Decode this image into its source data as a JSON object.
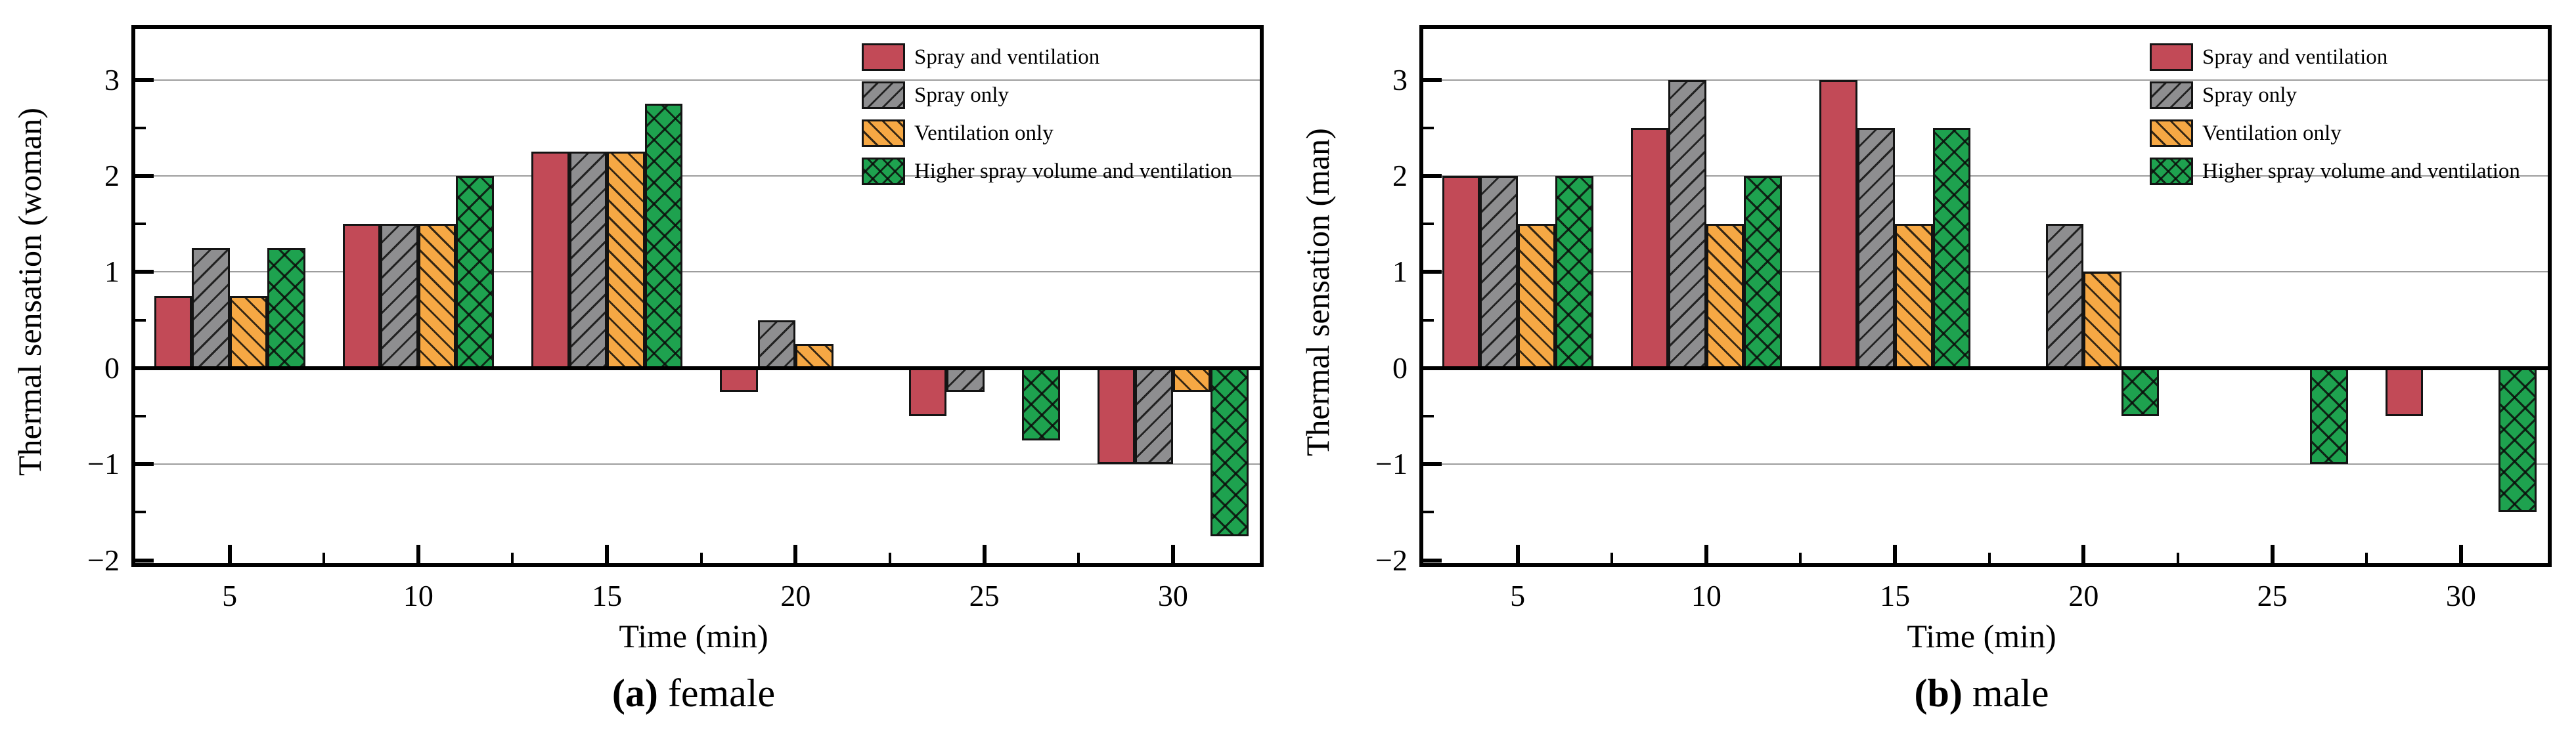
{
  "figure": {
    "background": "#ffffff",
    "frame_color": "#000000",
    "gridline_color": "#9d9d9d"
  },
  "chart_data": [
    {
      "panel": "a",
      "type": "bar",
      "caption_prefix": "(a)",
      "caption_text": " female",
      "xlabel": "Time (min)",
      "ylabel": "Thermal sensation (woman)",
      "categories": [
        5,
        10,
        15,
        20,
        25,
        30
      ],
      "x_tick_labels": [
        "5",
        "10",
        "15",
        "20",
        "25",
        "30"
      ],
      "x_minor_ticks": [
        7.5,
        12.5,
        17.5,
        22.5,
        27.5
      ],
      "y_ticks": [
        -2,
        -1,
        0,
        1,
        2,
        3
      ],
      "y_tick_labels": [
        "−2",
        "−1",
        "0",
        "1",
        "2",
        "3"
      ],
      "y_minor_ticks": [
        -1.5,
        -0.5,
        0.5,
        1.5,
        2.5
      ],
      "gridlines": [
        -1,
        1,
        2,
        3
      ],
      "xlim": [
        2.5,
        32.3
      ],
      "ylim": [
        -2.03,
        3.53
      ],
      "grid": true,
      "legend_position": "top-right",
      "bar_width_time_units": 1,
      "series": [
        {
          "name": "Spray and ventilation",
          "color": "#c24a57",
          "hatch": "none",
          "values": [
            0.75,
            1.5,
            2.25,
            -0.25,
            -0.5,
            -1
          ]
        },
        {
          "name": "Spray only",
          "color": "#8e8e90",
          "hatch": "slash",
          "values": [
            1.25,
            1.5,
            2.25,
            0.5,
            -0.25,
            -1
          ]
        },
        {
          "name": "Ventilation only",
          "color": "#f6a844",
          "hatch": "backslash",
          "values": [
            0.75,
            1.5,
            2.25,
            0.25,
            null,
            -0.25
          ]
        },
        {
          "name": "Higher spray volume and ventilation",
          "color": "#1ea24f",
          "hatch": "cross",
          "values": [
            1.25,
            2,
            2.75,
            null,
            -0.75,
            -1.75
          ]
        }
      ]
    },
    {
      "panel": "b",
      "type": "bar",
      "caption_prefix": "(b)",
      "caption_text": " male",
      "xlabel": "Time (min)",
      "ylabel": "Thermal sensation (man)",
      "categories": [
        5,
        10,
        15,
        20,
        25,
        30
      ],
      "x_tick_labels": [
        "5",
        "10",
        "15",
        "20",
        "25",
        "30"
      ],
      "x_minor_ticks": [
        7.5,
        12.5,
        17.5,
        22.5,
        27.5
      ],
      "y_ticks": [
        -2,
        -1,
        0,
        1,
        2,
        3
      ],
      "y_tick_labels": [
        "−2",
        "−1",
        "0",
        "1",
        "2",
        "3"
      ],
      "y_minor_ticks": [
        -1.5,
        -0.5,
        0.5,
        1.5,
        2.5
      ],
      "gridlines": [
        -1,
        1,
        2,
        3
      ],
      "xlim": [
        2.5,
        32.3
      ],
      "ylim": [
        -2.03,
        3.53
      ],
      "grid": true,
      "legend_position": "top-right",
      "bar_width_time_units": 1,
      "series": [
        {
          "name": "Spray and ventilation",
          "color": "#c24a57",
          "hatch": "none",
          "values": [
            2,
            2.5,
            3,
            null,
            null,
            -0.5
          ]
        },
        {
          "name": "Spray only",
          "color": "#8e8e90",
          "hatch": "slash",
          "values": [
            2,
            3,
            2.5,
            1.5,
            null,
            null
          ]
        },
        {
          "name": "Ventilation only",
          "color": "#f6a844",
          "hatch": "backslash",
          "values": [
            1.5,
            1.5,
            1.5,
            1,
            null,
            null
          ]
        },
        {
          "name": "Higher spray volume and ventilation",
          "color": "#1ea24f",
          "hatch": "cross",
          "values": [
            2,
            2,
            2.5,
            -0.5,
            -1,
            -1.5
          ]
        }
      ]
    }
  ]
}
